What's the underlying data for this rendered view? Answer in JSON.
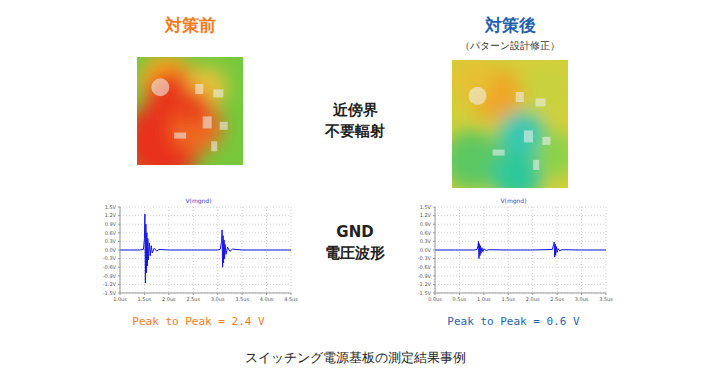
{
  "header": {
    "before": "対策前",
    "after": "対策後",
    "after_note": "（パターン設計修正）"
  },
  "row_labels": [
    [
      "近傍界",
      "不要輻射"
    ],
    [
      "GND",
      "電圧波形"
    ]
  ],
  "caption": "スイッチング電源基板の測定結果事例",
  "chart_data": [
    {
      "type": "line",
      "title": "V(mgnd)",
      "color": "#1414e6",
      "grid": true,
      "annotation": "Peak to Peak = 2.4 V",
      "x": [
        1.0,
        1.2,
        1.4,
        1.48,
        1.5,
        1.51,
        1.52,
        1.53,
        1.54,
        1.55,
        1.56,
        1.57,
        1.58,
        1.6,
        1.62,
        1.64,
        1.66,
        1.7,
        1.75,
        1.8,
        2.0,
        2.5,
        3.0,
        3.05,
        3.08,
        3.09,
        3.1,
        3.11,
        3.12,
        3.13,
        3.14,
        3.15,
        3.17,
        3.2,
        3.25,
        3.3,
        3.5,
        4.0,
        4.5
      ],
      "values": [
        0,
        0,
        0,
        0.02,
        0.4,
        1.25,
        -1.15,
        0.9,
        -0.8,
        0.6,
        -0.55,
        0.4,
        -0.35,
        0.25,
        -0.2,
        0.15,
        -0.1,
        0.06,
        -0.04,
        0.02,
        0,
        0,
        0,
        0.02,
        0.3,
        0.7,
        -0.6,
        0.5,
        -0.45,
        0.35,
        -0.3,
        0.2,
        -0.15,
        0.1,
        -0.05,
        0.03,
        0,
        0,
        0
      ],
      "xlim": [
        1.0,
        4.5
      ],
      "xticks": [
        {
          "value": 1.0,
          "label": "1.0us"
        },
        {
          "value": 1.5,
          "label": "1.5us"
        },
        {
          "value": 2.0,
          "label": "2.0us"
        },
        {
          "value": 2.5,
          "label": "2.5us"
        },
        {
          "value": 3.0,
          "label": "3.0us"
        },
        {
          "value": 3.5,
          "label": "3.5us"
        },
        {
          "value": 4.0,
          "label": "4.0us"
        },
        {
          "value": 4.5,
          "label": "4.5us"
        }
      ],
      "ylim": [
        -1.5,
        1.5
      ],
      "yticks": [
        {
          "value": 1.5,
          "label": "1.5V"
        },
        {
          "value": 1.2,
          "label": "1.2V"
        },
        {
          "value": 0.9,
          "label": "0.9V"
        },
        {
          "value": 0.6,
          "label": "0.6V"
        },
        {
          "value": 0.3,
          "label": "0.3V"
        },
        {
          "value": 0.0,
          "label": "0.0V"
        },
        {
          "value": -0.3,
          "label": "-0.3V"
        },
        {
          "value": -0.6,
          "label": "-0.6V"
        },
        {
          "value": -0.9,
          "label": "-0.9V"
        },
        {
          "value": -1.2,
          "label": "-1.2V"
        },
        {
          "value": -1.5,
          "label": "-1.5V"
        }
      ]
    },
    {
      "type": "line",
      "title": "V(mgnd)",
      "color": "#1414e6",
      "grid": true,
      "annotation": "Peak to Peak = 0.6 V",
      "x": [
        0.0,
        0.4,
        0.8,
        0.86,
        0.88,
        0.89,
        0.9,
        0.91,
        0.92,
        0.93,
        0.94,
        0.96,
        0.98,
        1.0,
        1.05,
        1.1,
        1.5,
        2.0,
        2.4,
        2.43,
        2.44,
        2.45,
        2.46,
        2.47,
        2.48,
        2.5,
        2.52,
        2.55,
        2.6,
        3.0,
        3.5
      ],
      "values": [
        0,
        0,
        0,
        0.02,
        0.15,
        0.3,
        -0.3,
        0.22,
        -0.2,
        0.15,
        -0.12,
        0.08,
        -0.06,
        0.04,
        -0.02,
        0.01,
        0,
        0,
        0.02,
        0.2,
        0.28,
        -0.25,
        0.2,
        -0.18,
        0.12,
        -0.08,
        0.05,
        -0.03,
        0.01,
        0,
        0
      ],
      "xlim": [
        0.0,
        3.5
      ],
      "xticks": [
        {
          "value": 0.0,
          "label": "0.0us"
        },
        {
          "value": 0.5,
          "label": "0.5us"
        },
        {
          "value": 1.0,
          "label": "1.0us"
        },
        {
          "value": 1.5,
          "label": "1.5us"
        },
        {
          "value": 2.0,
          "label": "2.0us"
        },
        {
          "value": 2.5,
          "label": "2.5us"
        },
        {
          "value": 3.0,
          "label": "3.0us"
        },
        {
          "value": 3.5,
          "label": "3.5us"
        }
      ],
      "ylim": [
        -1.5,
        1.5
      ],
      "yticks": [
        {
          "value": 1.5,
          "label": "1.5V"
        },
        {
          "value": 1.2,
          "label": "1.2V"
        },
        {
          "value": 0.9,
          "label": "0.9V"
        },
        {
          "value": 0.6,
          "label": "0.6V"
        },
        {
          "value": 0.3,
          "label": "0.3V"
        },
        {
          "value": 0.0,
          "label": "0.0V"
        },
        {
          "value": -0.3,
          "label": "-0.3V"
        },
        {
          "value": -0.6,
          "label": "-0.6V"
        },
        {
          "value": -0.9,
          "label": "-0.9V"
        },
        {
          "value": -1.2,
          "label": "-1.2V"
        },
        {
          "value": -1.5,
          "label": "-1.5V"
        }
      ]
    }
  ]
}
